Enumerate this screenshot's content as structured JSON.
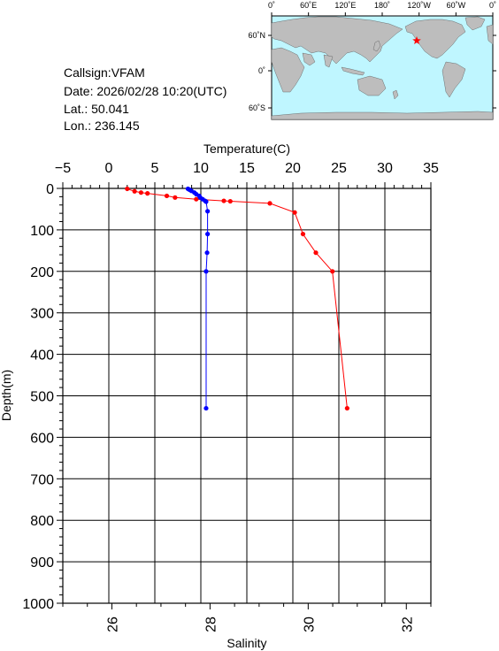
{
  "station": {
    "callsign": "Callsign:VFAM",
    "date": "Date:  2026/02/28 10:20(UTC)",
    "lat": "Lat.:  50.041",
    "lon": "Lon.:  236.145"
  },
  "map": {
    "lon_labels": [
      "0˚",
      "60˚E",
      "120˚E",
      "180˚",
      "120˚W",
      "60˚W",
      "0˚"
    ],
    "lat_labels": [
      "60˚N",
      "0˚",
      "60˚S"
    ],
    "ocean_color": "#bff6ff",
    "land_color": "#bdbdbd",
    "marker_color": "#ff0000",
    "marker_icon": "star-icon"
  },
  "chart_data": {
    "type": "line",
    "temperature_axis": {
      "label": "Temperature(C)",
      "ticks": [
        "−5",
        "0",
        "5",
        "10",
        "15",
        "20",
        "25",
        "30",
        "35"
      ],
      "range": [
        -5,
        35
      ]
    },
    "salinity_axis": {
      "label": "Salinity",
      "ticks": [
        "26",
        "28",
        "30",
        "32"
      ],
      "range": [
        25,
        32.5
      ]
    },
    "depth_axis": {
      "label": "Depth(m)",
      "ticks": [
        "0",
        "100",
        "200",
        "300",
        "400",
        "500",
        "600",
        "700",
        "800",
        "900",
        "1000"
      ],
      "range": [
        0,
        1000
      ],
      "inverted": true
    },
    "grid": true,
    "series": [
      {
        "color": "#ff0000",
        "axis": "temperature",
        "depth": [
          1,
          7,
          10,
          12,
          18,
          22,
          26,
          30,
          31,
          36,
          58,
          110,
          155,
          200,
          530
        ],
        "values": [
          2.0,
          2.8,
          3.5,
          4.2,
          6.3,
          7.2,
          9.5,
          12.5,
          13.2,
          17.5,
          20.2,
          21.1,
          22.5,
          24.3,
          25.9
        ]
      },
      {
        "color": "#0000ff",
        "axis": "salinity",
        "depth": [
          1,
          3,
          6,
          10,
          14,
          18,
          22,
          26,
          30,
          32,
          55,
          110,
          155,
          200,
          530
        ],
        "values": [
          27.55,
          27.58,
          27.62,
          27.68,
          27.72,
          27.78,
          27.8,
          27.85,
          27.9,
          27.92,
          27.95,
          27.95,
          27.94,
          27.92,
          27.92
        ]
      }
    ]
  }
}
